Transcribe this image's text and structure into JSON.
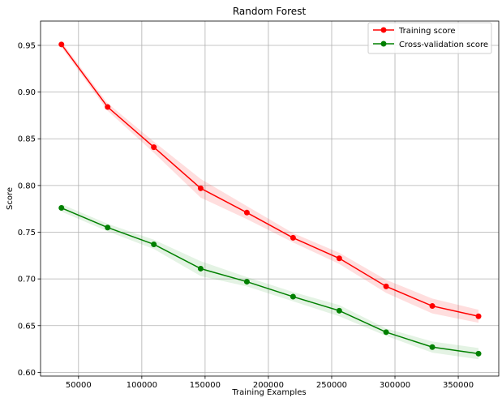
{
  "chart_data": {
    "type": "line",
    "title": "Random Forest",
    "xlabel": "Training Examples",
    "ylabel": "Score",
    "xlim": [
      20000,
      382000
    ],
    "ylim": [
      0.596,
      0.976
    ],
    "xticks": [
      50000,
      100000,
      150000,
      200000,
      250000,
      300000,
      350000
    ],
    "xtick_labels": [
      "50000",
      "100000",
      "150000",
      "200000",
      "250000",
      "300000",
      "350000"
    ],
    "yticks": [
      0.6,
      0.65,
      0.7,
      0.75,
      0.8,
      0.85,
      0.9,
      0.95
    ],
    "ytick_labels": [
      "0.60",
      "0.65",
      "0.70",
      "0.75",
      "0.80",
      "0.85",
      "0.90",
      "0.95"
    ],
    "grid": true,
    "legend_position": "top-right",
    "x": [
      36500,
      73000,
      109500,
      146500,
      183000,
      219500,
      256000,
      293000,
      329500,
      366000
    ],
    "series": [
      {
        "name": "Training score",
        "color": "#ff0000",
        "band_color": "#ff0000",
        "values": [
          0.951,
          0.884,
          0.841,
          0.797,
          0.771,
          0.744,
          0.722,
          0.692,
          0.671,
          0.66
        ],
        "band": [
          0.003,
          0.004,
          0.006,
          0.01,
          0.007,
          0.005,
          0.006,
          0.007,
          0.008,
          0.007
        ]
      },
      {
        "name": "Cross-validation score",
        "color": "#008000",
        "band_color": "#2ca02c",
        "values": [
          0.776,
          0.755,
          0.737,
          0.711,
          0.697,
          0.681,
          0.666,
          0.643,
          0.627,
          0.62
        ],
        "band": [
          0.004,
          0.004,
          0.005,
          0.008,
          0.005,
          0.005,
          0.006,
          0.004,
          0.006,
          0.006
        ]
      }
    ]
  }
}
